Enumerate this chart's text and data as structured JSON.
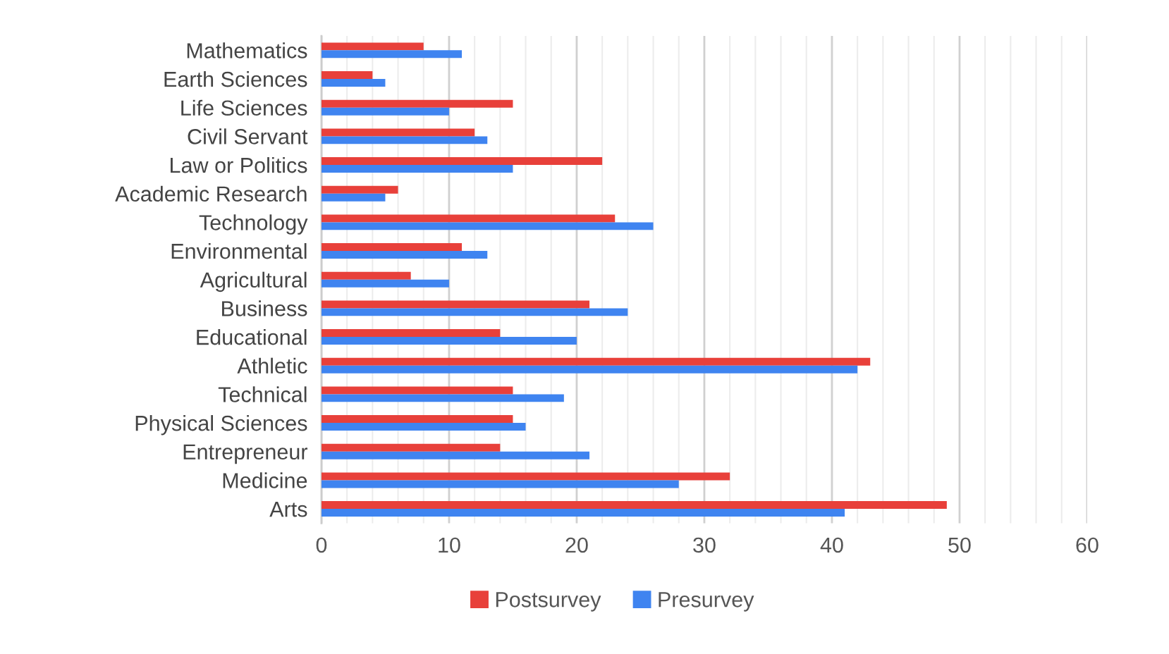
{
  "chart_data": {
    "type": "bar",
    "orientation": "horizontal",
    "categories": [
      "Mathematics",
      "Earth Sciences",
      "Life Sciences",
      "Civil Servant",
      "Law or Politics",
      "Academic Research",
      "Technology",
      "Environmental",
      "Agricultural",
      "Business",
      "Educational",
      "Athletic",
      "Technical",
      "Physical Sciences",
      "Entrepreneur",
      "Medicine",
      "Arts"
    ],
    "series": [
      {
        "name": "Postsurvey",
        "color": "#e8403a",
        "values": [
          8,
          4,
          15,
          12,
          22,
          6,
          23,
          11,
          7,
          21,
          14,
          43,
          15,
          15,
          14,
          32,
          49
        ]
      },
      {
        "name": "Presurvey",
        "color": "#3f84f0",
        "values": [
          11,
          5,
          10,
          13,
          15,
          5,
          26,
          13,
          10,
          24,
          20,
          42,
          19,
          16,
          21,
          28,
          41
        ]
      }
    ],
    "xlim": [
      0,
      60
    ],
    "xticks": [
      0,
      {
        "value": 2,
        "label": null
      },
      {
        "value": 4,
        "label": null
      },
      {
        "value": 6,
        "label": null
      },
      {
        "value": 8,
        "label": null
      },
      10,
      {
        "value": 12,
        "label": null
      },
      {
        "value": 14,
        "label": null
      },
      {
        "value": 16,
        "label": null
      },
      {
        "value": 18,
        "label": null
      },
      20,
      {
        "value": 22,
        "label": null
      },
      {
        "value": 24,
        "label": null
      },
      {
        "value": 26,
        "label": null
      },
      {
        "value": 28,
        "label": null
      },
      30,
      {
        "value": 32,
        "label": null
      },
      {
        "value": 34,
        "label": null
      },
      {
        "value": 36,
        "label": null
      },
      {
        "value": 38,
        "label": null
      },
      40,
      {
        "value": 42,
        "label": null
      },
      {
        "value": 44,
        "label": null
      },
      {
        "value": 46,
        "label": null
      },
      {
        "value": 48,
        "label": null
      },
      50,
      {
        "value": 52,
        "label": null
      },
      {
        "value": 54,
        "label": null
      },
      {
        "value": 56,
        "label": null
      },
      {
        "value": 58,
        "label": null
      },
      60
    ],
    "grid": "x",
    "legend": "bottom"
  }
}
